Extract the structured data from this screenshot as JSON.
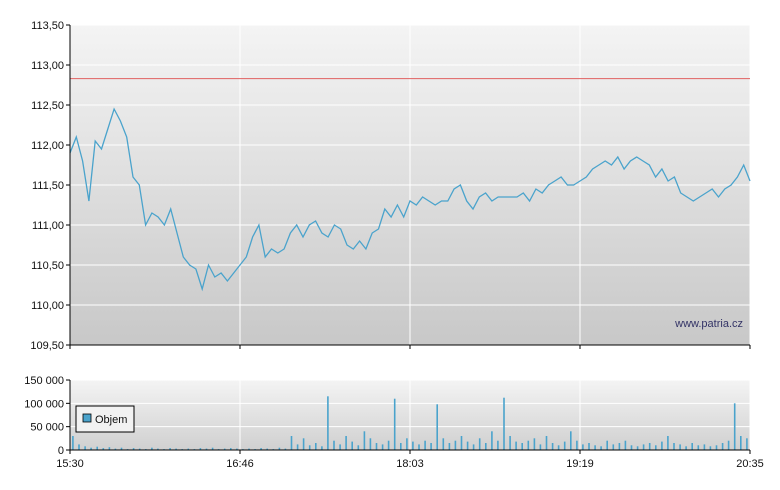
{
  "watermark": "www.patria.cz",
  "colors": {
    "price_line": "#4aa3cc",
    "reference_line": "#e06060",
    "volume_bar": "#4aa3cc",
    "plot_bg_top": "#f4f4f4",
    "plot_bg_bottom": "#c8c8c8",
    "grid": "#ffffff",
    "axis": "#000000"
  },
  "chart_data": [
    {
      "type": "line",
      "name": "price",
      "x_ticks": [
        "15:30",
        "16:46",
        "18:03",
        "19:19",
        "20:35"
      ],
      "y_ticks": [
        "109,50",
        "110,00",
        "110,50",
        "111,00",
        "111,50",
        "112,00",
        "112,50",
        "113,00",
        "113,50"
      ],
      "ylim": [
        109.5,
        113.5
      ],
      "grid": true,
      "reference_line": 112.83,
      "series": [
        {
          "values": [
            111.9,
            112.1,
            111.8,
            111.3,
            112.05,
            111.95,
            112.2,
            112.45,
            112.3,
            112.1,
            111.6,
            111.5,
            111.0,
            111.15,
            111.1,
            111.0,
            111.2,
            110.9,
            110.6,
            110.5,
            110.45,
            110.2,
            110.5,
            110.35,
            110.4,
            110.3,
            110.4,
            110.5,
            110.6,
            110.85,
            111.0,
            110.6,
            110.7,
            110.65,
            110.7,
            110.9,
            111.0,
            110.85,
            111.0,
            111.05,
            110.9,
            110.85,
            111.0,
            110.95,
            110.75,
            110.7,
            110.8,
            110.7,
            110.9,
            110.95,
            111.2,
            111.1,
            111.25,
            111.1,
            111.3,
            111.25,
            111.35,
            111.3,
            111.25,
            111.3,
            111.3,
            111.45,
            111.5,
            111.3,
            111.2,
            111.35,
            111.4,
            111.3,
            111.35,
            111.35,
            111.35,
            111.35,
            111.4,
            111.3,
            111.45,
            111.4,
            111.5,
            111.55,
            111.6,
            111.5,
            111.5,
            111.55,
            111.6,
            111.7,
            111.75,
            111.8,
            111.75,
            111.85,
            111.7,
            111.8,
            111.85,
            111.8,
            111.75,
            111.6,
            111.7,
            111.55,
            111.6,
            111.4,
            111.35,
            111.3,
            111.35,
            111.4,
            111.45,
            111.35,
            111.45,
            111.5,
            111.6,
            111.75,
            111.55
          ]
        }
      ]
    },
    {
      "type": "bar",
      "name": "volume",
      "legend": [
        "Objem"
      ],
      "y_ticks": [
        "0",
        "50 000",
        "100 000",
        "150 000"
      ],
      "ylim": [
        0,
        150000
      ],
      "grid": true,
      "values": [
        30000,
        12000,
        8000,
        5000,
        7000,
        4000,
        6000,
        3000,
        5000,
        2000,
        4000,
        3000,
        2000,
        5000,
        3000,
        2000,
        4000,
        3000,
        2000,
        3000,
        2000,
        4000,
        3000,
        5000,
        2000,
        3000,
        4000,
        3000,
        2000,
        3000,
        2000,
        4000,
        3000,
        2000,
        5000,
        3000,
        30000,
        12000,
        25000,
        10000,
        15000,
        8000,
        115000,
        20000,
        12000,
        30000,
        18000,
        10000,
        40000,
        25000,
        15000,
        12000,
        20000,
        110000,
        15000,
        25000,
        18000,
        12000,
        20000,
        15000,
        98000,
        25000,
        15000,
        20000,
        30000,
        18000,
        12000,
        25000,
        15000,
        40000,
        20000,
        112000,
        30000,
        18000,
        15000,
        20000,
        25000,
        12000,
        30000,
        15000,
        10000,
        18000,
        40000,
        20000,
        12000,
        15000,
        10000,
        8000,
        20000,
        12000,
        15000,
        20000,
        10000,
        8000,
        12000,
        15000,
        10000,
        18000,
        30000,
        15000,
        12000,
        8000,
        15000,
        10000,
        12000,
        8000,
        10000,
        15000,
        20000,
        100000,
        30000,
        25000
      ]
    }
  ]
}
